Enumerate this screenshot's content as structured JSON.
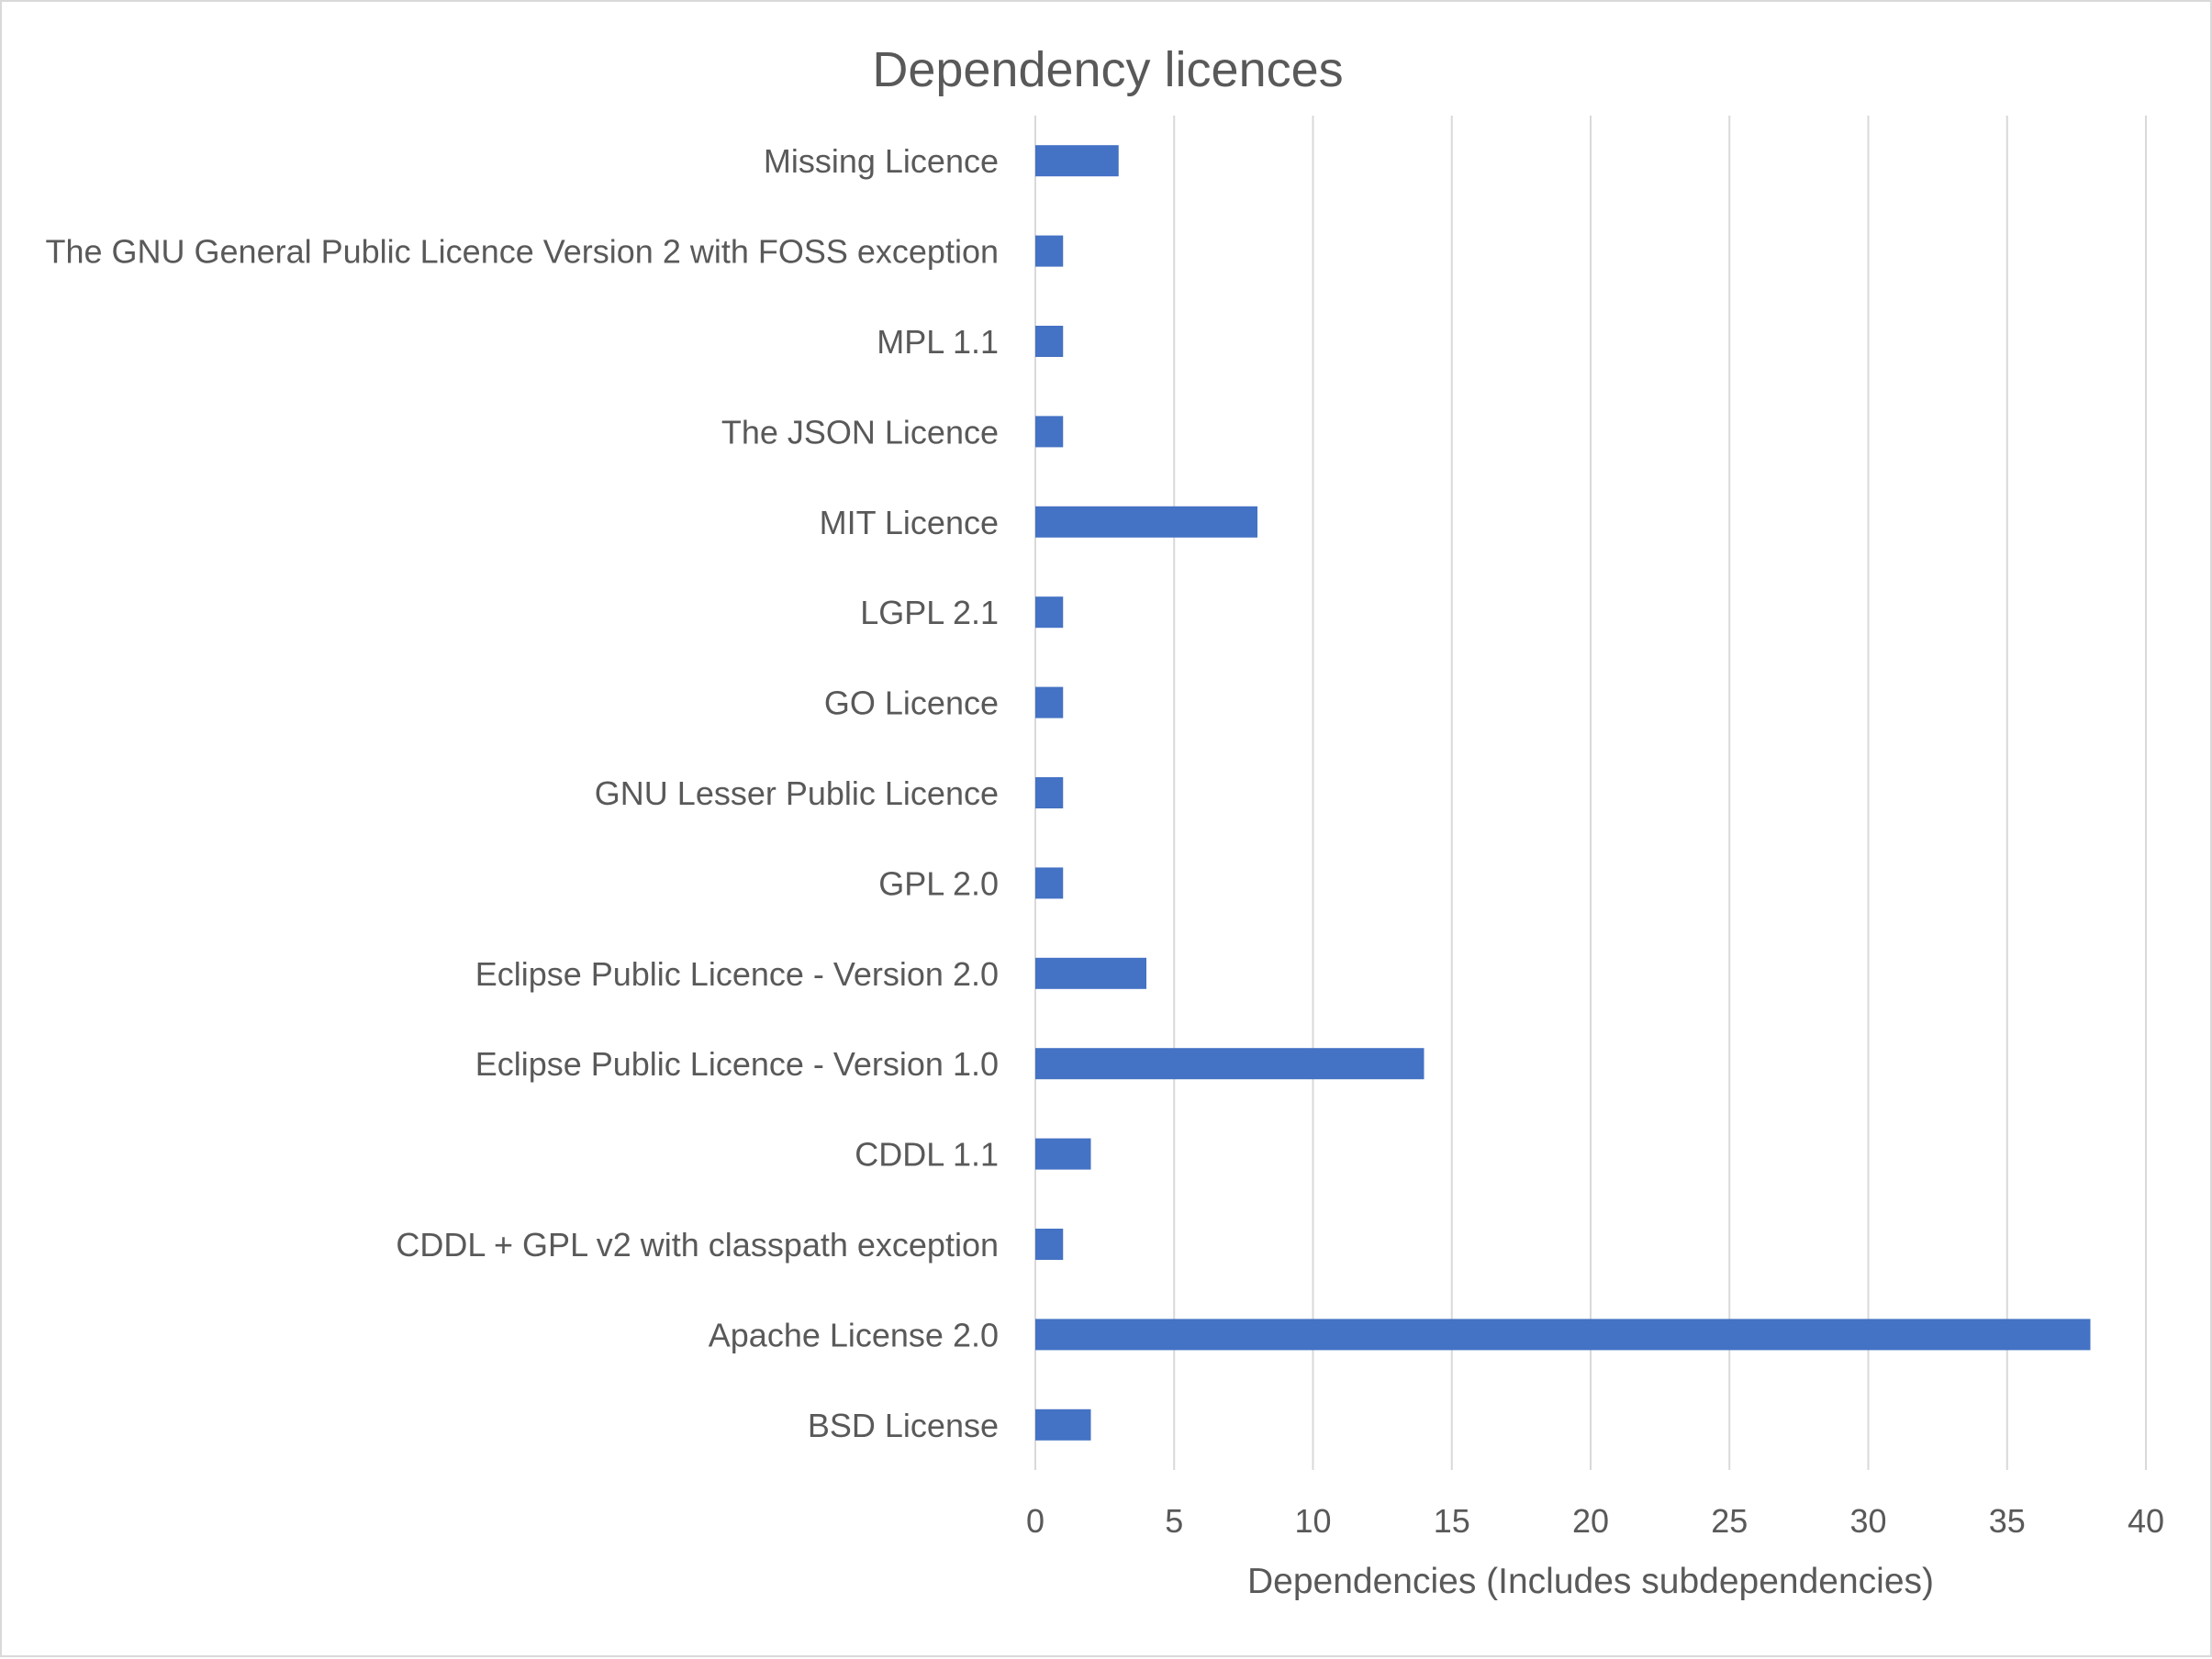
{
  "chart_data": {
    "type": "bar",
    "orientation": "horizontal",
    "title": "Dependency licences",
    "xlabel": "Dependencies (Includes subdependencies)",
    "ylabel": "",
    "categories": [
      "Missing Licence",
      "The GNU General Public Licence Version 2 with FOSS exception",
      "MPL 1.1",
      "The JSON Licence",
      "MIT Licence",
      "LGPL 2.1",
      "GO Licence",
      "GNU Lesser Public Licence",
      "GPL 2.0",
      "Eclipse Public Licence - Version 2.0",
      "Eclipse Public Licence - Version 1.0",
      "CDDL 1.1",
      "CDDL + GPL v2 with classpath exception",
      "Apache License 2.0",
      "BSD License"
    ],
    "values": [
      3,
      1,
      1,
      1,
      8,
      1,
      1,
      1,
      1,
      4,
      14,
      2,
      1,
      38,
      2
    ],
    "xlim": [
      0,
      40
    ],
    "x_ticks": [
      "0",
      "5",
      "10",
      "15",
      "20",
      "25",
      "30",
      "35",
      "40"
    ],
    "grid": "vertical",
    "legend": "none",
    "colors": {
      "bar": "#4472c4",
      "grid": "#d9d9d9",
      "text": "#595959",
      "border": "#d9d9d9"
    }
  }
}
